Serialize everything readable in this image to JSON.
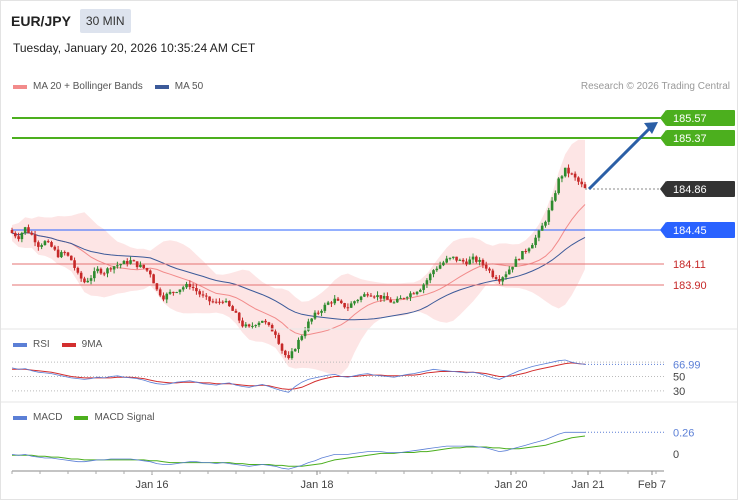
{
  "header": {
    "symbol": "EUR/JPY",
    "timeframe": "30 MIN",
    "datetime": "Tuesday, January 20, 2026 10:35:24 AM CET"
  },
  "credit": "Research © 2026 Trading Central",
  "colors": {
    "up": "#2e8b2e",
    "down": "#c62828",
    "resistance": "#4caf1e",
    "support": "#2962ff",
    "pivot_red": "#e57373",
    "current": "#333333",
    "arrow": "#2b5fa6",
    "bb_fill": "#fcdede",
    "ma20": "#f28b8b",
    "ma50": "#3c5a99",
    "rsi": "#5b7fd6",
    "rsi_ma": "#d32f2f",
    "macd": "#5b7fd6",
    "macd_signal": "#4caf1e"
  },
  "chart_data": [
    {
      "type": "candlestick",
      "legend": [
        {
          "name": "MA 20 + Bollinger Bands",
          "color": "#f28b8b"
        },
        {
          "name": "MA 50",
          "color": "#3c5a99"
        }
      ],
      "ylim": [
        183.5,
        185.75
      ],
      "price_levels": [
        {
          "value": 185.57,
          "label": "185.57",
          "kind": "resistance"
        },
        {
          "value": 185.37,
          "label": "185.37",
          "kind": "resistance"
        },
        {
          "value": 184.86,
          "label": "184.86",
          "kind": "current"
        },
        {
          "value": 184.45,
          "label": "184.45",
          "kind": "support"
        },
        {
          "value": 184.11,
          "label": "184.11",
          "kind": "pivot"
        },
        {
          "value": 183.9,
          "label": "183.90",
          "kind": "pivot"
        }
      ],
      "close_path": [
        184.42,
        184.38,
        184.47,
        184.4,
        184.3,
        184.33,
        184.28,
        184.2,
        184.22,
        184.15,
        184.0,
        183.93,
        183.98,
        184.05,
        184.03,
        184.08,
        184.1,
        184.12,
        184.14,
        184.1,
        184.07,
        184.02,
        183.85,
        183.78,
        183.82,
        183.85,
        183.88,
        183.9,
        183.84,
        183.78,
        183.74,
        183.72,
        183.75,
        183.68,
        183.6,
        183.5,
        183.47,
        183.52,
        183.55,
        183.48,
        183.42,
        183.25,
        183.15,
        183.28,
        183.4,
        183.52,
        183.6,
        183.66,
        183.72,
        183.75,
        183.7,
        183.68,
        183.74,
        183.78,
        183.82,
        183.8,
        183.78,
        183.75,
        183.72,
        183.76,
        183.8,
        183.83,
        183.87,
        183.95,
        184.05,
        184.1,
        184.15,
        184.17,
        184.14,
        184.13,
        184.16,
        184.13,
        184.08,
        184.0,
        183.96,
        184.02,
        184.1,
        184.18,
        184.25,
        184.32,
        184.42,
        184.55,
        184.72,
        184.95,
        185.05,
        185.0,
        184.93,
        184.86
      ],
      "annotation": {
        "type": "arrow",
        "from_value": 184.86,
        "to_value": 185.57
      }
    },
    {
      "type": "line",
      "legend": [
        {
          "name": "RSI",
          "color": "#5b7fd6"
        },
        {
          "name": "9MA",
          "color": "#d32f2f"
        }
      ],
      "ylim": [
        20,
        80
      ],
      "levels": [
        70,
        50,
        30
      ],
      "level_labels": [
        "50",
        "30"
      ],
      "last_label": "66.99",
      "rsi": [
        62,
        60,
        61,
        58,
        56,
        55,
        54,
        52,
        50,
        48,
        47,
        46,
        47,
        49,
        48,
        50,
        51,
        49,
        48,
        47,
        45,
        42,
        40,
        39,
        40,
        42,
        43,
        44,
        42,
        40,
        39,
        38,
        40,
        41,
        38,
        36,
        35,
        37,
        39,
        36,
        33,
        30,
        28,
        36,
        42,
        46,
        48,
        50,
        52,
        53,
        50,
        49,
        51,
        53,
        54,
        52,
        51,
        50,
        49,
        51,
        53,
        54,
        56,
        58,
        60,
        59,
        58,
        57,
        56,
        55,
        56,
        54,
        51,
        48,
        46,
        50,
        54,
        58,
        61,
        64,
        66,
        68,
        70,
        72,
        73,
        70,
        68,
        66.99
      ],
      "rsi_ma": [
        60,
        60,
        60,
        59,
        58,
        57,
        56,
        54,
        52,
        50,
        49,
        48,
        48,
        48,
        48,
        48,
        49,
        49,
        49,
        48,
        47,
        45,
        43,
        42,
        41,
        41,
        42,
        42,
        42,
        41,
        41,
        40,
        40,
        40,
        39,
        38,
        37,
        37,
        38,
        37,
        35,
        33,
        32,
        33,
        35,
        39,
        43,
        46,
        48,
        50,
        50,
        50,
        50,
        51,
        52,
        52,
        52,
        51,
        51,
        51,
        52,
        52,
        53,
        55,
        56,
        57,
        57,
        57,
        57,
        56,
        56,
        55,
        54,
        52,
        50,
        50,
        51,
        53,
        55,
        58,
        60,
        62,
        64,
        66,
        68,
        69,
        68,
        67
      ]
    },
    {
      "type": "line",
      "legend": [
        {
          "name": "MACD",
          "color": "#5b7fd6"
        },
        {
          "name": "MACD Signal",
          "color": "#4caf1e"
        }
      ],
      "ylim": [
        -0.15,
        0.35
      ],
      "zero_label": "0",
      "last_label": "0.26",
      "x_ticks": [
        "Jan 16",
        "Jan 18",
        "Jan 20",
        "Jan 21",
        "Feb 7"
      ],
      "macd": [
        0.02,
        0.01,
        0.02,
        0.0,
        -0.01,
        -0.02,
        -0.02,
        -0.03,
        -0.04,
        -0.05,
        -0.06,
        -0.06,
        -0.05,
        -0.04,
        -0.04,
        -0.03,
        -0.03,
        -0.03,
        -0.03,
        -0.04,
        -0.05,
        -0.06,
        -0.08,
        -0.09,
        -0.09,
        -0.08,
        -0.07,
        -0.06,
        -0.06,
        -0.07,
        -0.07,
        -0.08,
        -0.07,
        -0.08,
        -0.09,
        -0.1,
        -0.11,
        -0.1,
        -0.09,
        -0.1,
        -0.11,
        -0.13,
        -0.14,
        -0.12,
        -0.1,
        -0.07,
        -0.05,
        -0.02,
        0.0,
        0.02,
        0.02,
        0.02,
        0.03,
        0.04,
        0.05,
        0.05,
        0.05,
        0.04,
        0.04,
        0.04,
        0.05,
        0.06,
        0.07,
        0.08,
        0.09,
        0.1,
        0.11,
        0.11,
        0.11,
        0.11,
        0.11,
        0.1,
        0.09,
        0.07,
        0.05,
        0.06,
        0.08,
        0.1,
        0.12,
        0.14,
        0.16,
        0.18,
        0.21,
        0.24,
        0.26,
        0.26,
        0.26,
        0.26
      ],
      "signal": [
        0.01,
        0.01,
        0.01,
        0.01,
        0.0,
        0.0,
        -0.01,
        -0.01,
        -0.02,
        -0.03,
        -0.03,
        -0.04,
        -0.04,
        -0.04,
        -0.04,
        -0.04,
        -0.04,
        -0.04,
        -0.04,
        -0.04,
        -0.04,
        -0.05,
        -0.05,
        -0.06,
        -0.07,
        -0.07,
        -0.07,
        -0.07,
        -0.07,
        -0.07,
        -0.07,
        -0.07,
        -0.07,
        -0.07,
        -0.08,
        -0.08,
        -0.09,
        -0.09,
        -0.09,
        -0.09,
        -0.1,
        -0.1,
        -0.11,
        -0.11,
        -0.11,
        -0.1,
        -0.09,
        -0.08,
        -0.06,
        -0.04,
        -0.03,
        -0.02,
        -0.01,
        0.0,
        0.01,
        0.02,
        0.03,
        0.03,
        0.03,
        0.04,
        0.04,
        0.04,
        0.05,
        0.05,
        0.06,
        0.07,
        0.08,
        0.09,
        0.09,
        0.1,
        0.1,
        0.1,
        0.1,
        0.09,
        0.09,
        0.08,
        0.08,
        0.08,
        0.09,
        0.1,
        0.11,
        0.12,
        0.14,
        0.16,
        0.18,
        0.2,
        0.21,
        0.22
      ]
    }
  ]
}
